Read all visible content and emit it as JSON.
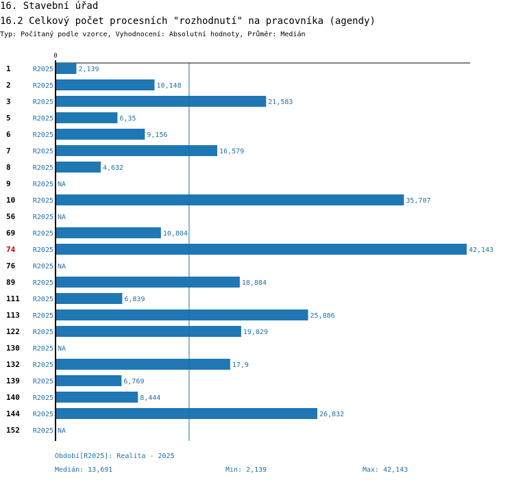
{
  "header": {
    "title": "16. Stavební úřad",
    "subtitle": "16.2 Celkový počet procesních \"rozhodnutí\" na pracovníka (agendy)",
    "description": "Typ: Počítaný podle vzorce, Vyhodnocení: Absolutní hodnoty, Průměr: Medián"
  },
  "chart_data": {
    "type": "bar",
    "orientation": "horizontal",
    "xlim": [
      0,
      42.143
    ],
    "axis_zero_label": "0",
    "series_label": "R2025",
    "median": 13.691,
    "bar_color": "#1f77b4",
    "highlight_color": "#cc0000",
    "highlight_category": "74",
    "categories": [
      "1",
      "2",
      "3",
      "5",
      "6",
      "7",
      "8",
      "9",
      "10",
      "56",
      "69",
      "74",
      "76",
      "89",
      "111",
      "113",
      "122",
      "130",
      "132",
      "139",
      "140",
      "144",
      "152"
    ],
    "values": [
      2.139,
      10.148,
      21.583,
      6.35,
      9.156,
      16.579,
      4.632,
      null,
      35.707,
      null,
      10.804,
      42.143,
      null,
      18.884,
      6.839,
      25.886,
      19.029,
      null,
      17.9,
      6.769,
      8.444,
      26.832,
      null
    ],
    "value_labels": [
      "2,139",
      "10,148",
      "21,583",
      "6,35",
      "9,156",
      "16,579",
      "4,632",
      "NA",
      "35,707",
      "NA",
      "10,804",
      "42,143",
      "NA",
      "18,884",
      "6,839",
      "25,886",
      "19,029",
      "NA",
      "17,9",
      "6,769",
      "8,444",
      "26,832",
      "NA"
    ]
  },
  "footer": {
    "period": "Období[R2025]: Realita - 2025",
    "median": "Medián: 13,691",
    "min": "Min: 2,139",
    "max": "Max: 42,143"
  }
}
